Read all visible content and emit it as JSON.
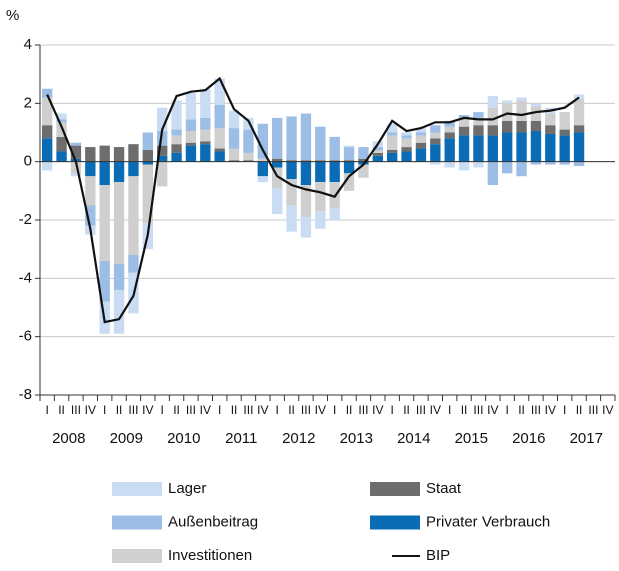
{
  "chart_data": {
    "type": "bar",
    "y_label": "%",
    "categories": [
      "I",
      "II",
      "III",
      "IV",
      "I",
      "II",
      "III",
      "IV",
      "I",
      "II",
      "III",
      "IV",
      "I",
      "II",
      "III",
      "IV",
      "I",
      "II",
      "III",
      "IV",
      "I",
      "II",
      "III",
      "IV",
      "I",
      "II",
      "III",
      "IV",
      "I",
      "II",
      "III",
      "IV",
      "I",
      "II",
      "III",
      "IV",
      "I",
      "II",
      "III",
      "IV"
    ],
    "years": [
      "2008",
      "2009",
      "2010",
      "2011",
      "2012",
      "2013",
      "2014",
      "2015",
      "2016",
      "2017"
    ],
    "ylim": [
      -8,
      4
    ],
    "yticks": [
      -8,
      -6,
      -4,
      -2,
      0,
      2,
      4
    ],
    "grid": true,
    "series": [
      {
        "name": "Lager",
        "color": "#c9dcf3",
        "values": [
          -0.3,
          0.2,
          -0.1,
          -0.3,
          -1.1,
          -1.5,
          -1.4,
          -0.9,
          0.8,
          1.0,
          0.9,
          1.0,
          0.9,
          0.6,
          0.4,
          -0.2,
          -0.9,
          -0.9,
          -0.7,
          -0.6,
          -0.4,
          0.05,
          0.0,
          0.2,
          0.3,
          0.1,
          0.15,
          -0.1,
          -0.2,
          -0.3,
          -0.2,
          0.4,
          0.1,
          0.1,
          0.1,
          0.2,
          0.0,
          0.15,
          null,
          null
        ]
      },
      {
        "name": "Außenbeitrag",
        "color": "#9bbde6",
        "values": [
          0.3,
          0.1,
          0.1,
          -0.7,
          -1.4,
          -0.9,
          -0.6,
          0.6,
          0.5,
          0.2,
          0.4,
          0.4,
          0.8,
          0.7,
          0.8,
          1.2,
          1.4,
          1.5,
          1.6,
          1.15,
          0.8,
          0.45,
          0.4,
          0.1,
          0.1,
          0.1,
          0.1,
          0.25,
          0.2,
          0.1,
          0.2,
          -0.8,
          -0.4,
          -0.5,
          -0.1,
          -0.1,
          -0.1,
          -0.15,
          null,
          null
        ]
      },
      {
        "name": "Investitionen",
        "color": "#cfcfcf",
        "values": [
          0.95,
          0.5,
          -0.4,
          -1.0,
          -2.6,
          -2.8,
          -2.7,
          -2.0,
          -0.85,
          0.3,
          0.4,
          0.4,
          0.7,
          0.4,
          0.25,
          0.1,
          -0.7,
          -0.9,
          -1.1,
          -1.0,
          -0.9,
          -0.6,
          -0.45,
          0.1,
          0.5,
          0.3,
          0.25,
          0.2,
          0.2,
          0.3,
          0.25,
          0.6,
          0.6,
          0.7,
          0.5,
          0.4,
          0.6,
          0.9,
          null,
          null
        ]
      },
      {
        "name": "Staat",
        "color": "#6d6d6d",
        "values": [
          0.45,
          0.5,
          0.45,
          0.5,
          0.55,
          0.5,
          0.6,
          0.4,
          0.35,
          0.3,
          0.1,
          0.1,
          0.1,
          0.05,
          0.05,
          0.0,
          0.1,
          0.05,
          0.05,
          0.05,
          0.05,
          0.05,
          0.1,
          0.1,
          0.1,
          0.15,
          0.2,
          0.2,
          0.2,
          0.3,
          0.35,
          0.35,
          0.4,
          0.4,
          0.35,
          0.3,
          0.2,
          0.25,
          null,
          null
        ]
      },
      {
        "name": "Privater Verbrauch",
        "color": "#0a6cb5",
        "values": [
          0.8,
          0.35,
          0.1,
          -0.5,
          -0.8,
          -0.7,
          -0.5,
          -0.1,
          0.2,
          0.3,
          0.55,
          0.6,
          0.35,
          0.0,
          0.0,
          -0.5,
          -0.2,
          -0.6,
          -0.8,
          -0.7,
          -0.7,
          -0.4,
          -0.1,
          0.2,
          0.3,
          0.35,
          0.45,
          0.6,
          0.8,
          0.9,
          0.9,
          0.9,
          1.0,
          1.0,
          1.05,
          0.95,
          0.9,
          1.0,
          null,
          null
        ]
      },
      {
        "name": "BIP",
        "color": "#111111",
        "type": "line",
        "values": [
          2.3,
          1.2,
          0.0,
          -2.3,
          -5.5,
          -5.4,
          -4.6,
          -2.5,
          1.1,
          2.25,
          2.4,
          2.45,
          2.85,
          1.8,
          1.4,
          0.4,
          -0.5,
          -0.8,
          -0.95,
          -1.05,
          -1.2,
          -0.5,
          -0.1,
          0.6,
          1.4,
          1.05,
          1.15,
          1.35,
          1.35,
          1.5,
          1.45,
          1.45,
          1.65,
          1.6,
          1.7,
          1.75,
          1.85,
          2.2,
          null,
          null
        ]
      }
    ]
  }
}
